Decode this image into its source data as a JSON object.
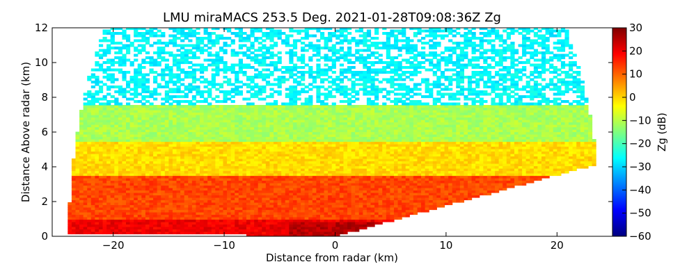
{
  "chart_data": {
    "type": "heatmap",
    "title": "LMU miraMACS 253.5 Deg. 2021-01-28T09:08:36Z  Zg",
    "xlabel": "Distance from radar (km)",
    "ylabel": "Distance Above radar  (km)",
    "xlim": [
      -25.5,
      25
    ],
    "ylim": [
      0,
      12
    ],
    "x_ticks": [
      "−20",
      "−10",
      "0",
      "10",
      "20"
    ],
    "x_tick_values": [
      -20,
      -10,
      0,
      10,
      20
    ],
    "y_ticks": [
      "0",
      "2",
      "4",
      "6",
      "8",
      "10",
      "12"
    ],
    "y_tick_values": [
      0,
      2,
      4,
      6,
      8,
      10,
      12
    ],
    "colorbar": {
      "label": "Zg (dB)",
      "range": [
        -60,
        30
      ],
      "ticks": [
        "30",
        "20",
        "10",
        "0",
        "−10",
        "−20",
        "−30",
        "−40",
        "−50",
        "−60"
      ],
      "tick_values": [
        30,
        20,
        10,
        0,
        -10,
        -20,
        -30,
        -40,
        -50,
        -60
      ],
      "colormap": "jet"
    },
    "scan": {
      "type": "RHI",
      "azimuth_deg": 253.5,
      "max_range_km": 24,
      "min_elevation_left_deg": 0.5,
      "min_elevation_right_deg": 10
    },
    "reflectivity_layers": [
      {
        "height_km": [
          0,
          1
        ],
        "zg_db": 20
      },
      {
        "height_km": [
          1,
          3.5
        ],
        "zg_db": 13
      },
      {
        "height_km": [
          3.5,
          5.5
        ],
        "zg_db": 0
      },
      {
        "height_km": [
          5.5,
          7.5
        ],
        "zg_db": -10
      },
      {
        "height_km": [
          7.5,
          12
        ],
        "zg_db": -25
      }
    ]
  }
}
